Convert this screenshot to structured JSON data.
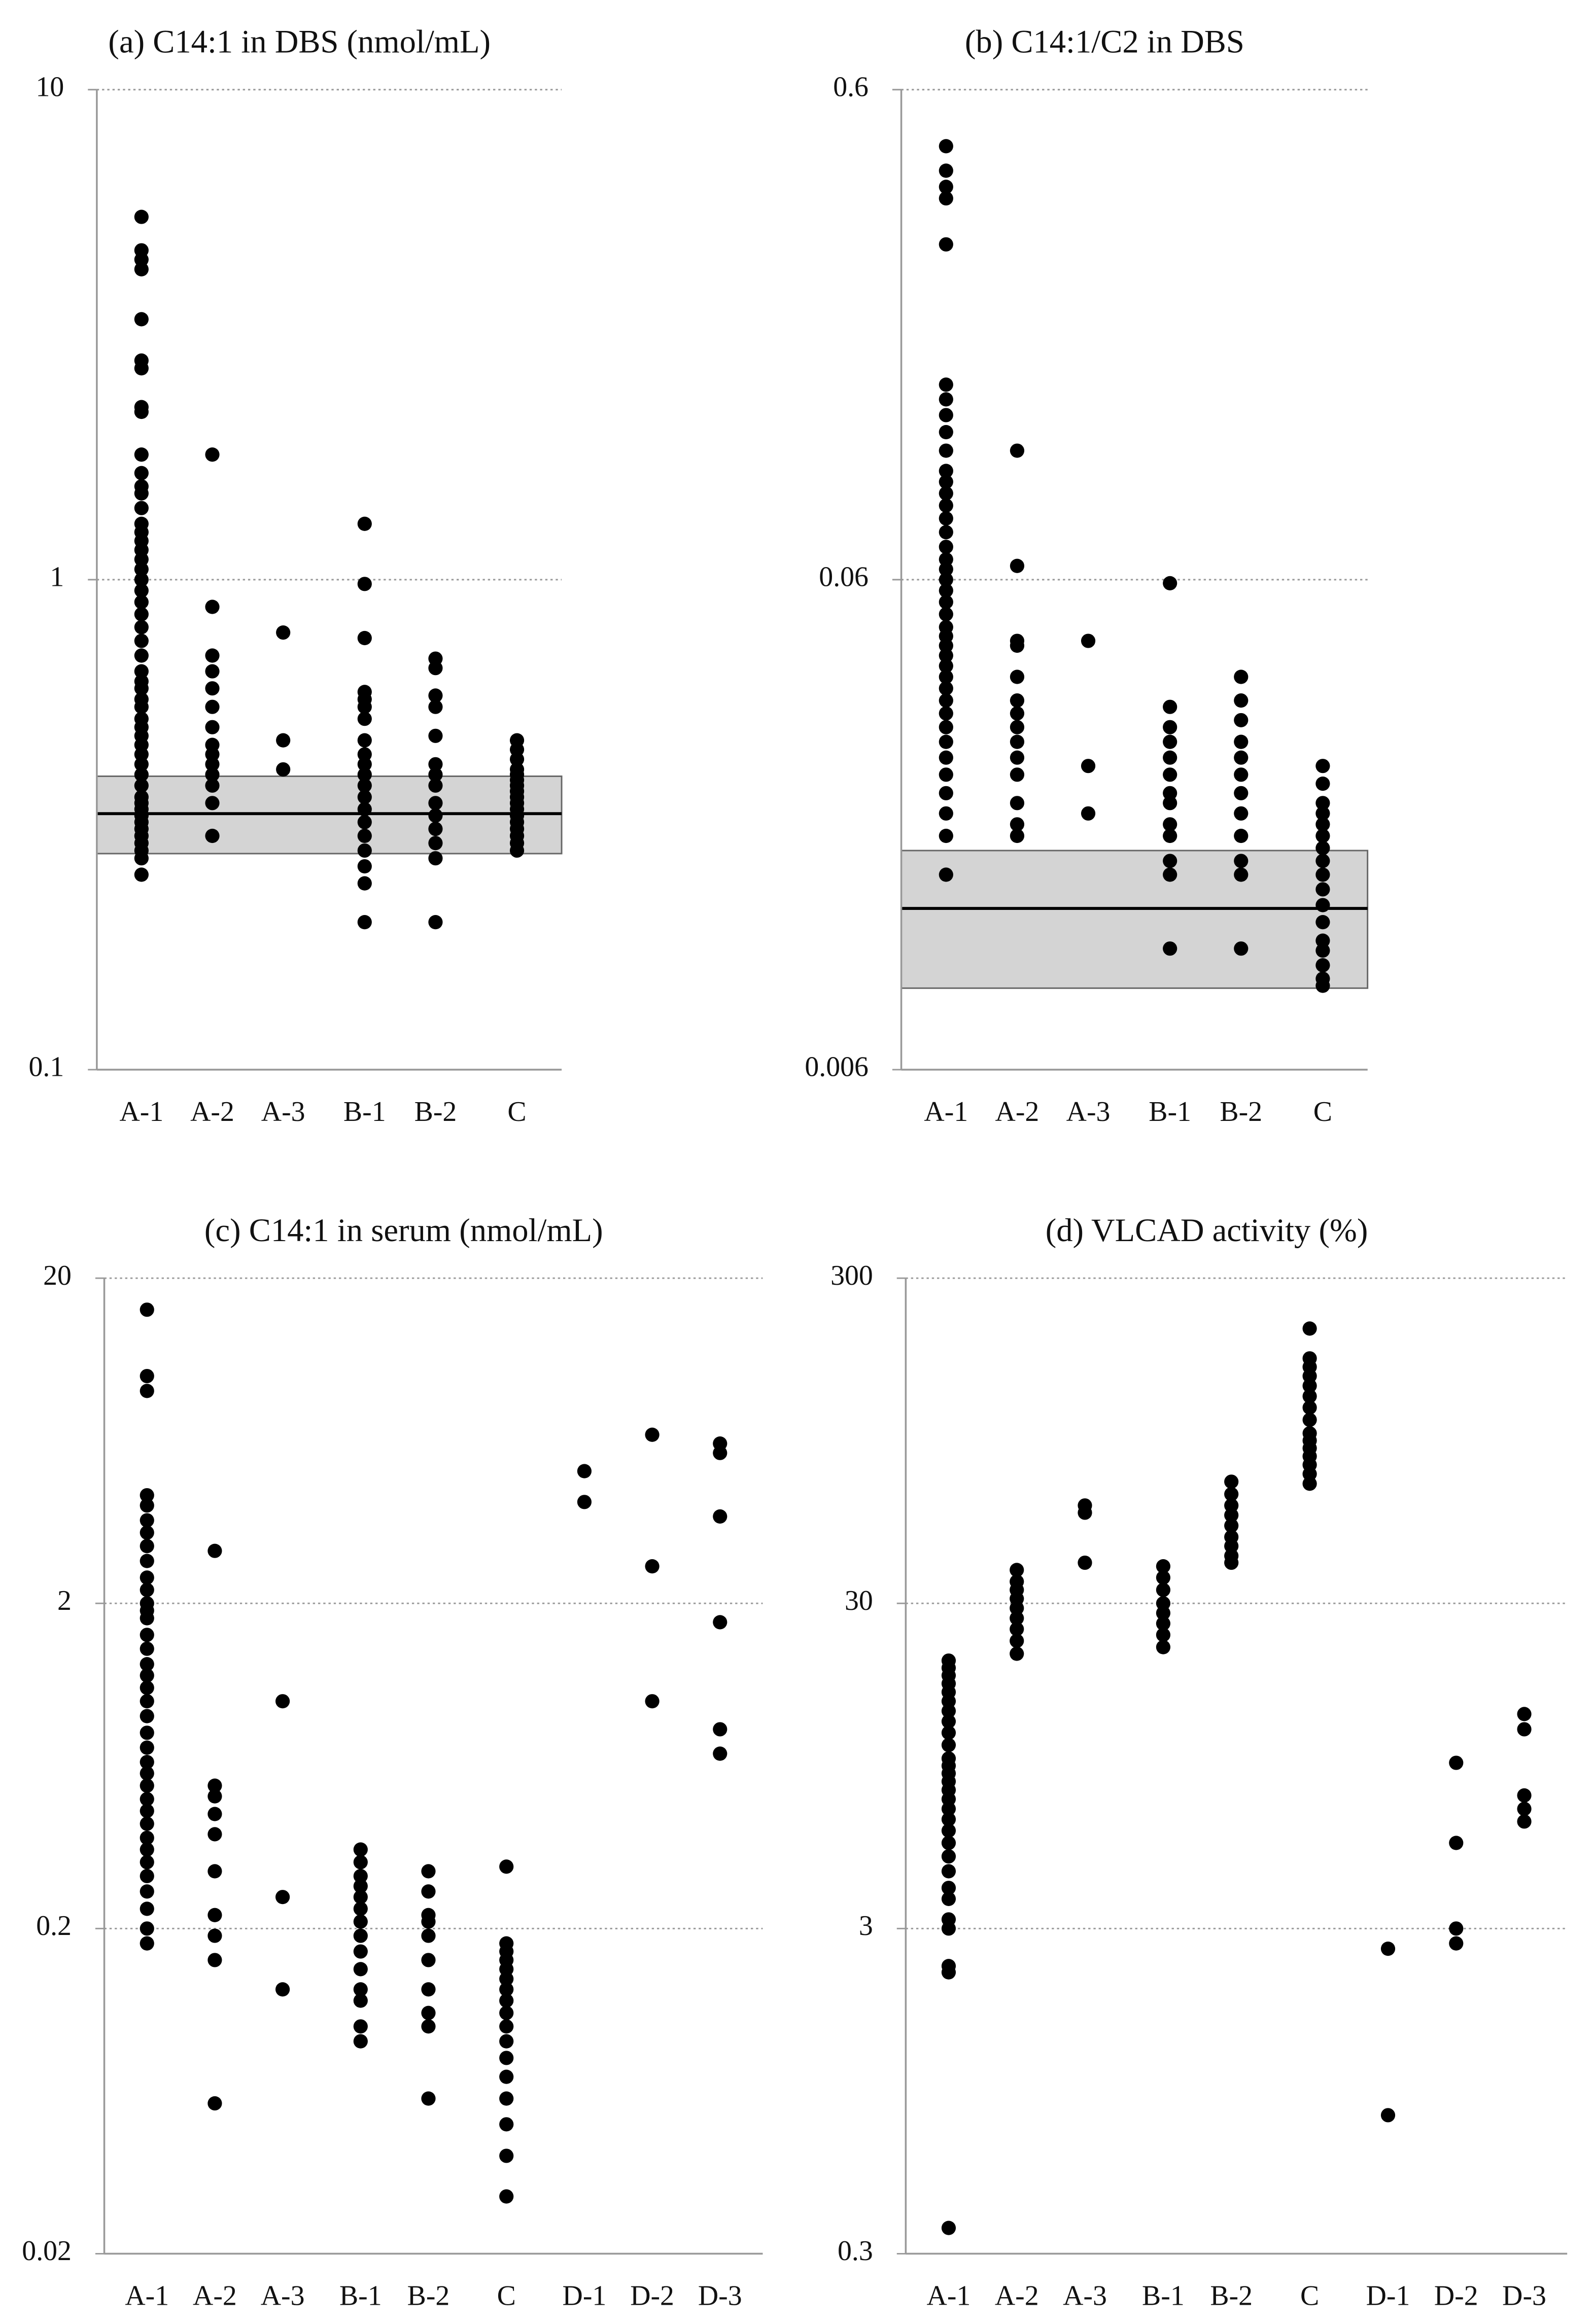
{
  "chart_data": [
    {
      "type": "strip",
      "title": "(a) C14:1 in DBS (nmol/mL)",
      "log_scale": true,
      "grid": true,
      "color": "#000000",
      "categories": [
        "A-1",
        "A-2",
        "A-3",
        "B-1",
        "B-2",
        "C"
      ],
      "values": [
        [
          5.5,
          4.7,
          4.5,
          4.3,
          3.4,
          2.8,
          2.7,
          2.25,
          2.2,
          1.8,
          1.65,
          1.55,
          1.5,
          1.4,
          1.3,
          1.25,
          1.2,
          1.15,
          1.1,
          1.05,
          1.0,
          0.95,
          0.9,
          0.85,
          0.8,
          0.75,
          0.7,
          0.65,
          0.62,
          0.6,
          0.57,
          0.55,
          0.52,
          0.5,
          0.48,
          0.46,
          0.44,
          0.42,
          0.4,
          0.38,
          0.36,
          0.35,
          0.34,
          0.33,
          0.32,
          0.31,
          0.3,
          0.29,
          0.28,
          0.27,
          0.25
        ],
        [
          1.8,
          0.88,
          0.7,
          0.65,
          0.6,
          0.55,
          0.5,
          0.46,
          0.44,
          0.42,
          0.4,
          0.38,
          0.35,
          0.3
        ],
        [
          0.78,
          0.47,
          0.41
        ],
        [
          1.3,
          0.98,
          0.76,
          0.59,
          0.57,
          0.55,
          0.52,
          0.47,
          0.44,
          0.42,
          0.4,
          0.38,
          0.36,
          0.34,
          0.32,
          0.3,
          0.28,
          0.26,
          0.24,
          0.2
        ],
        [
          0.69,
          0.66,
          0.58,
          0.55,
          0.48,
          0.42,
          0.4,
          0.38,
          0.35,
          0.33,
          0.31,
          0.29,
          0.27,
          0.2
        ],
        [
          0.47,
          0.45,
          0.43,
          0.41,
          0.4,
          0.39,
          0.38,
          0.37,
          0.36,
          0.35,
          0.34,
          0.33,
          0.32,
          0.31,
          0.3,
          0.29,
          0.28
        ]
      ],
      "reference_band": [
        0.276,
        0.397
      ],
      "reference_line": 0.333,
      "ylim": [
        0.1,
        10
      ],
      "yticks": [
        0.1,
        1,
        10
      ]
    },
    {
      "type": "strip",
      "title": "(b) C14:1/C2 in DBS",
      "log_scale": true,
      "grid": true,
      "color": "#000000",
      "categories": [
        "A-1",
        "A-2",
        "A-3",
        "B-1",
        "B-2",
        "C"
      ],
      "values": [
        [
          0.46,
          0.41,
          0.38,
          0.36,
          0.29,
          0.15,
          0.14,
          0.13,
          0.12,
          0.11,
          0.1,
          0.095,
          0.09,
          0.085,
          0.08,
          0.075,
          0.07,
          0.066,
          0.063,
          0.06,
          0.057,
          0.054,
          0.051,
          0.048,
          0.046,
          0.044,
          0.042,
          0.04,
          0.038,
          0.036,
          0.034,
          0.032,
          0.03,
          0.028,
          0.026,
          0.024,
          0.022,
          0.02,
          0.018,
          0.015
        ],
        [
          0.11,
          0.064,
          0.045,
          0.044,
          0.038,
          0.034,
          0.032,
          0.03,
          0.028,
          0.026,
          0.024,
          0.021,
          0.019,
          0.018
        ],
        [
          0.045,
          0.025,
          0.02
        ],
        [
          0.059,
          0.033,
          0.03,
          0.028,
          0.026,
          0.024,
          0.022,
          0.021,
          0.019,
          0.018,
          0.016,
          0.015,
          0.0106
        ],
        [
          0.038,
          0.034,
          0.031,
          0.028,
          0.026,
          0.024,
          0.022,
          0.02,
          0.018,
          0.016,
          0.015,
          0.0106
        ],
        [
          0.025,
          0.023,
          0.021,
          0.02,
          0.019,
          0.018,
          0.017,
          0.016,
          0.015,
          0.014,
          0.013,
          0.012,
          0.011,
          0.0105,
          0.0098,
          0.0092,
          0.0089
        ]
      ],
      "reference_band": [
        0.0088,
        0.0168
      ],
      "reference_line": 0.0128,
      "ylim": [
        0.006,
        0.6
      ],
      "yticks": [
        0.006,
        0.06,
        0.6
      ]
    },
    {
      "type": "strip",
      "title": "(c) C14:1 in serum (nmol/mL)",
      "log_scale": true,
      "grid": true,
      "color": "#000000",
      "categories": [
        "A-1",
        "A-2",
        "A-3",
        "B-1",
        "B-2",
        "C",
        "D-1",
        "D-2",
        "D-3"
      ],
      "values": [
        [
          16,
          10,
          9,
          4.3,
          4,
          3.6,
          3.3,
          3,
          2.7,
          2.4,
          2.2,
          2,
          1.9,
          1.8,
          1.6,
          1.45,
          1.3,
          1.2,
          1.1,
          1,
          0.9,
          0.8,
          0.72,
          0.65,
          0.6,
          0.55,
          0.5,
          0.46,
          0.42,
          0.38,
          0.35,
          0.32,
          0.29,
          0.26,
          0.23,
          0.2,
          0.18
        ],
        [
          2.9,
          0.55,
          0.51,
          0.45,
          0.39,
          0.3,
          0.22,
          0.19,
          0.16,
          0.058
        ],
        [
          1,
          0.25,
          0.13
        ],
        [
          0.35,
          0.32,
          0.29,
          0.27,
          0.25,
          0.23,
          0.21,
          0.19,
          0.17,
          0.15,
          0.13,
          0.12,
          0.1,
          0.09
        ],
        [
          0.3,
          0.26,
          0.22,
          0.21,
          0.19,
          0.16,
          0.13,
          0.11,
          0.1,
          0.06
        ],
        [
          0.31,
          0.18,
          0.17,
          0.16,
          0.15,
          0.14,
          0.13,
          0.12,
          0.11,
          0.1,
          0.09,
          0.08,
          0.07,
          0.06,
          0.05,
          0.04,
          0.03
        ],
        [
          5.1,
          4.1
        ],
        [
          6.6,
          2.6,
          1
        ],
        [
          6.2,
          5.8,
          3.7,
          1.75,
          0.82,
          0.69
        ]
      ],
      "ylim": [
        0.02,
        20
      ],
      "yticks": [
        0.02,
        0.2,
        2,
        20
      ]
    },
    {
      "type": "strip",
      "title": "(d) VLCAD activity (%)",
      "log_scale": true,
      "grid": true,
      "color": "#000000",
      "categories": [
        "A-1",
        "A-2",
        "A-3",
        "B-1",
        "B-2",
        "C",
        "D-1",
        "D-2",
        "D-3"
      ],
      "values": [
        [
          20,
          19,
          18,
          17,
          16,
          15,
          14,
          13,
          12,
          11,
          10,
          9.5,
          9,
          8.5,
          8,
          7.5,
          7,
          6.5,
          6,
          5.5,
          5,
          4.5,
          4,
          3.7,
          3.2,
          3,
          2.3,
          2.2,
          0.36
        ],
        [
          38,
          35,
          33,
          31,
          29,
          27,
          25,
          23,
          21
        ],
        [
          60,
          57,
          40
        ],
        [
          39,
          36,
          33,
          30,
          28,
          26,
          24,
          22
        ],
        [
          71,
          65,
          60,
          56,
          52,
          48,
          45,
          42,
          40
        ],
        [
          210,
          170,
          160,
          150,
          140,
          130,
          120,
          110,
          100,
          95,
          90,
          85,
          80,
          75,
          70
        ],
        [
          2.6,
          0.8
        ],
        [
          9.7,
          5.5,
          3,
          2.7
        ],
        [
          13.7,
          12.3,
          7.7,
          7,
          6.4
        ]
      ],
      "ylim": [
        0.3,
        300
      ],
      "yticks": [
        0.3,
        3,
        30,
        300
      ]
    }
  ]
}
